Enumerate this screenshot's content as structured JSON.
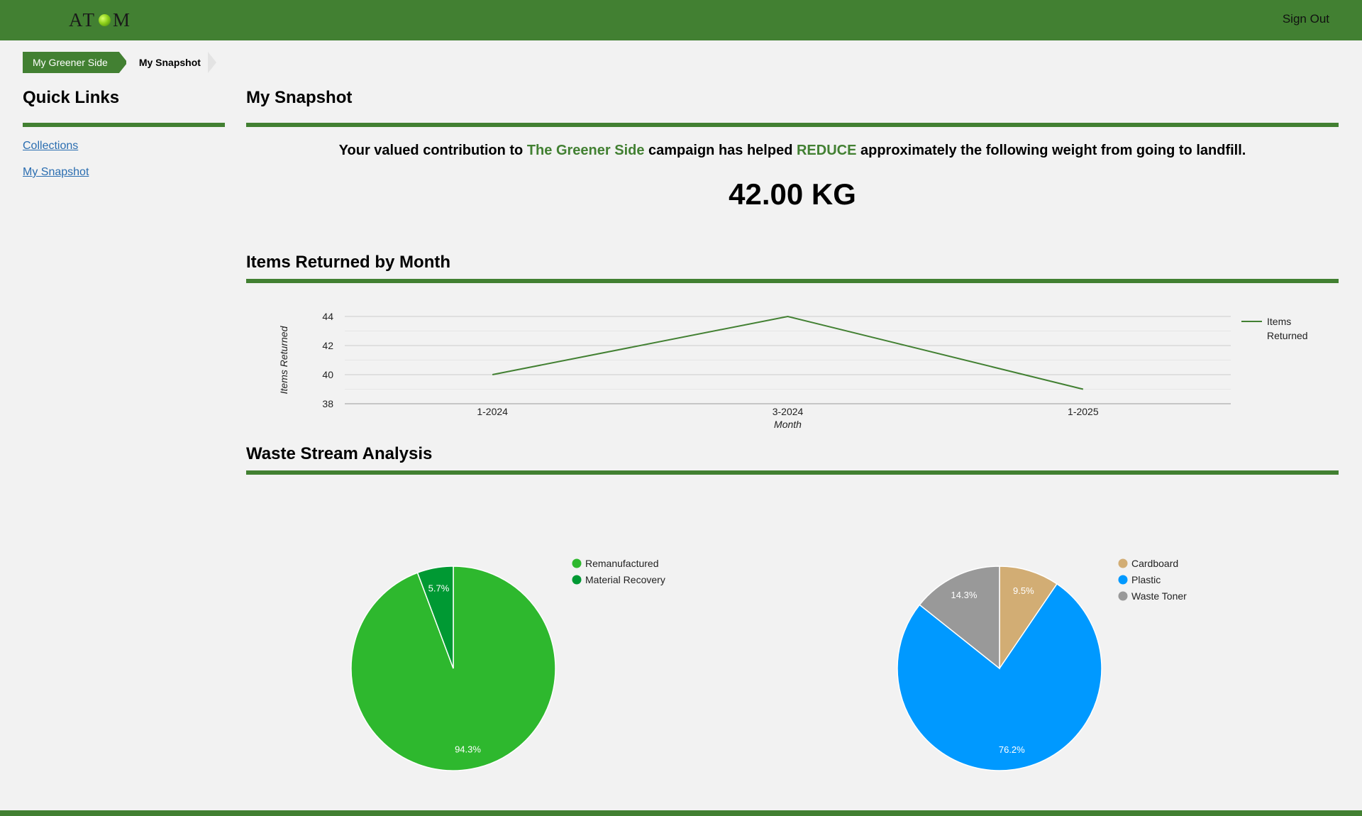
{
  "header": {
    "logo_text_left": "AT",
    "logo_text_right": "M",
    "sign_out": "Sign Out"
  },
  "breadcrumb": [
    "My Greener Side",
    "My Snapshot"
  ],
  "sidebar": {
    "title": "Quick Links",
    "links": [
      "Collections",
      "My Snapshot"
    ]
  },
  "snapshot": {
    "title": "My Snapshot",
    "message_part1": "Your valued contribution to ",
    "message_campaign": "The Greener Side",
    "message_part2": " campaign has helped ",
    "message_reduce": "REDUCE",
    "message_part3": " approximately the following weight from going to landfill.",
    "weight": "42.00 KG"
  },
  "items_section": {
    "title": "Items Returned by Month"
  },
  "waste_section": {
    "title": "Waste Stream Analysis"
  },
  "colors": {
    "brand_green": "#428032",
    "remanufactured": "#2eb82e",
    "material_recovery": "#009933",
    "cardboard": "#d2ad74",
    "plastic": "#0099ff",
    "waste_toner": "#999999"
  },
  "chart_data": [
    {
      "type": "line",
      "title": "Items Returned by Month",
      "xlabel": "Month",
      "ylabel": "Items Returned",
      "categories": [
        "1-2024",
        "3-2024",
        "1-2025"
      ],
      "series": [
        {
          "name": "Items Returned",
          "values": [
            40,
            44,
            39
          ]
        }
      ],
      "ylim": [
        38,
        44
      ],
      "yticks": [
        38,
        40,
        42,
        44
      ],
      "grid": true,
      "legend": "right"
    },
    {
      "type": "pie",
      "categories": [
        "Remanufactured",
        "Material Recovery"
      ],
      "values": [
        94.3,
        5.7
      ],
      "labels": [
        "94.3%",
        "5.7%"
      ],
      "legend": "top-right"
    },
    {
      "type": "pie",
      "categories": [
        "Cardboard",
        "Plastic",
        "Waste Toner"
      ],
      "values": [
        9.5,
        76.2,
        14.3
      ],
      "labels": [
        "9.5%",
        "76.2%",
        "14.3%"
      ],
      "legend": "top-right"
    }
  ]
}
